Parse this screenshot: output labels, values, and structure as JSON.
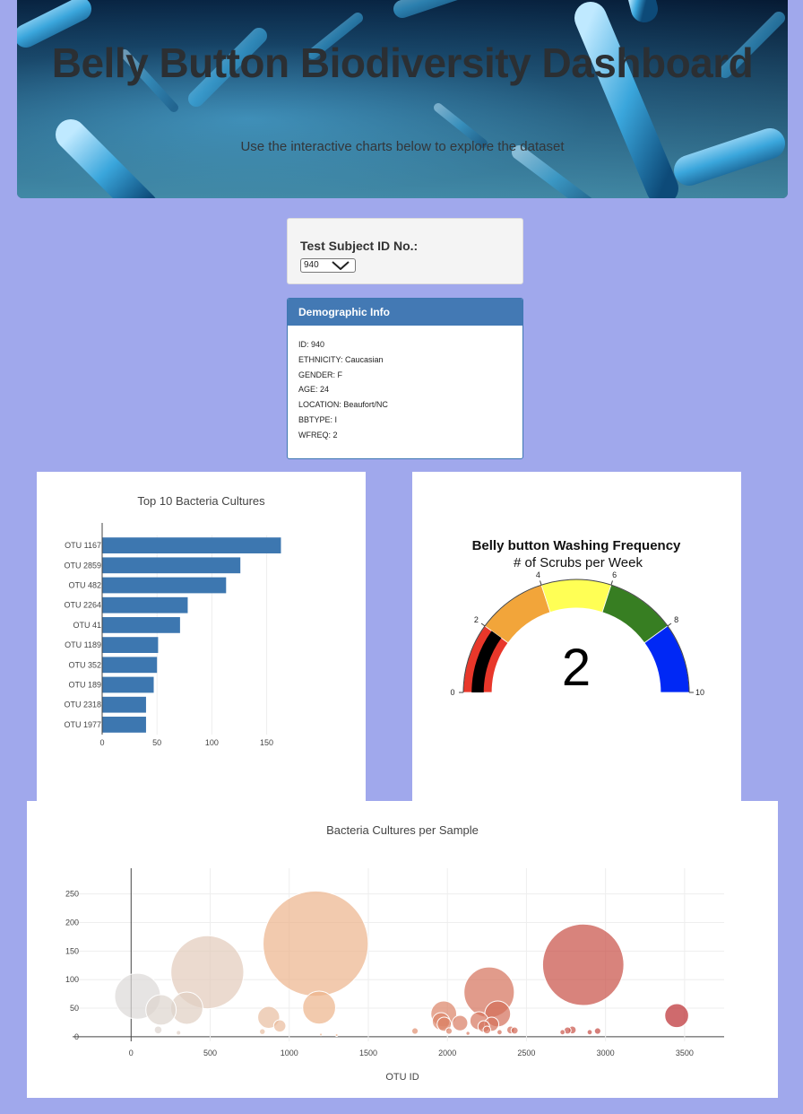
{
  "header": {
    "title": "Belly Button Biodiversity Dashboard",
    "subtitle": "Use the interactive charts below to explore the dataset"
  },
  "selector": {
    "label": "Test Subject ID No.:",
    "selected": "940"
  },
  "demographics": {
    "title": "Demographic Info",
    "rows": [
      "ID: 940",
      "ETHNICITY: Caucasian",
      "GENDER: F",
      "AGE: 24",
      "LOCATION: Beaufort/NC",
      "BBTYPE: I",
      "WFREQ: 2"
    ]
  },
  "colors": {
    "bar": "#3d77b0",
    "background": "#a0a8ec",
    "panel_header": "#4379b4"
  },
  "chart_data": [
    {
      "type": "bar",
      "orientation": "horizontal",
      "title": "Top 10 Bacteria Cultures",
      "categories": [
        "OTU 1167",
        "OTU 2859",
        "OTU 482",
        "OTU 2264",
        "OTU 41",
        "OTU 1189",
        "OTU 352",
        "OTU 189",
        "OTU 2318",
        "OTU 1977"
      ],
      "values": [
        163,
        126,
        113,
        78,
        71,
        51,
        50,
        47,
        40,
        40
      ],
      "xticks": [
        0,
        50,
        100,
        150
      ],
      "xlim": [
        0,
        171.6
      ]
    },
    {
      "type": "gauge",
      "title": "Belly button Washing Frequency",
      "subtitle": "# of Scrubs per Week",
      "value": 2,
      "range": [
        0,
        10
      ],
      "ticks": [
        0,
        2,
        4,
        6,
        8,
        10
      ],
      "steps": [
        {
          "range": [
            0,
            2
          ],
          "color": "#e8372a"
        },
        {
          "range": [
            2,
            4
          ],
          "color": "#f2a53a"
        },
        {
          "range": [
            4,
            6
          ],
          "color": "#ffff55"
        },
        {
          "range": [
            6,
            8
          ],
          "color": "#377e22"
        },
        {
          "range": [
            8,
            10
          ],
          "color": "#0028f5"
        }
      ],
      "bar_color": "#000000"
    },
    {
      "type": "scatter",
      "mode": "bubble",
      "title": "Bacteria Cultures per Sample",
      "xlabel": "OTU ID",
      "xticks": [
        0,
        500,
        1000,
        1500,
        2000,
        2500,
        3000,
        3500
      ],
      "yticks": [
        0,
        50,
        100,
        150,
        200,
        250
      ],
      "xlim": [
        -370,
        3750
      ],
      "ylim": [
        -8,
        295
      ],
      "points": [
        {
          "x": 41,
          "y": 71
        },
        {
          "x": 189,
          "y": 47
        },
        {
          "x": 352,
          "y": 50
        },
        {
          "x": 482,
          "y": 113
        },
        {
          "x": 171,
          "y": 12
        },
        {
          "x": 300,
          "y": 7
        },
        {
          "x": 870,
          "y": 34
        },
        {
          "x": 940,
          "y": 19
        },
        {
          "x": 830,
          "y": 9
        },
        {
          "x": 1167,
          "y": 163
        },
        {
          "x": 1189,
          "y": 51
        },
        {
          "x": 1200,
          "y": 4
        },
        {
          "x": 1300,
          "y": 3
        },
        {
          "x": 1795,
          "y": 10
        },
        {
          "x": 1977,
          "y": 40
        },
        {
          "x": 1960,
          "y": 27
        },
        {
          "x": 1980,
          "y": 22
        },
        {
          "x": 2010,
          "y": 10
        },
        {
          "x": 2080,
          "y": 24
        },
        {
          "x": 2130,
          "y": 6
        },
        {
          "x": 2200,
          "y": 28
        },
        {
          "x": 2230,
          "y": 18
        },
        {
          "x": 2264,
          "y": 78
        },
        {
          "x": 2280,
          "y": 22
        },
        {
          "x": 2250,
          "y": 12
        },
        {
          "x": 2318,
          "y": 40
        },
        {
          "x": 2330,
          "y": 8
        },
        {
          "x": 2400,
          "y": 12
        },
        {
          "x": 2425,
          "y": 11
        },
        {
          "x": 2728,
          "y": 8
        },
        {
          "x": 2760,
          "y": 11
        },
        {
          "x": 2790,
          "y": 12
        },
        {
          "x": 2859,
          "y": 126
        },
        {
          "x": 2900,
          "y": 8
        },
        {
          "x": 2950,
          "y": 10
        },
        {
          "x": 3450,
          "y": 37
        }
      ]
    }
  ]
}
